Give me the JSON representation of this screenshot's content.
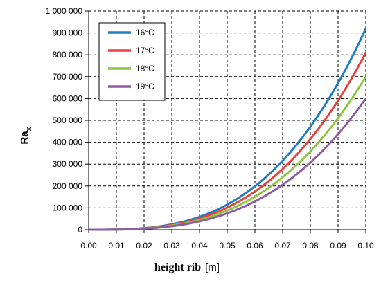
{
  "chart_data": {
    "type": "line",
    "title": "",
    "xlabel": "height rib",
    "xlabel_unit": "[m]",
    "ylabel_main": "Ra",
    "ylabel_sub": "x",
    "xlim": [
      0.0,
      0.1
    ],
    "ylim": [
      0,
      1000000
    ],
    "x_ticks": [
      0.0,
      0.01,
      0.02,
      0.03,
      0.04,
      0.05,
      0.06,
      0.07,
      0.08,
      0.09,
      0.1
    ],
    "x_tick_labels": [
      "0.00",
      "0.01",
      "0.02",
      "0.03",
      "0.04",
      "0.05",
      "0.06",
      "0.07",
      "0.08",
      "0.09",
      "0.10"
    ],
    "y_ticks": [
      0,
      100000,
      200000,
      300000,
      400000,
      500000,
      600000,
      700000,
      800000,
      900000,
      1000000
    ],
    "y_tick_labels": [
      "0",
      "100 000",
      "200 000",
      "300 000",
      "400 000",
      "500 000",
      "600 000",
      "700 000",
      "800 000",
      "900 000",
      "1 000 000"
    ],
    "grid": true,
    "legend_position": "top-left",
    "x": [
      0.0,
      0.01,
      0.02,
      0.03,
      0.04,
      0.05,
      0.06,
      0.07,
      0.08,
      0.09,
      0.1
    ],
    "series": [
      {
        "name": "16°C",
        "color": "#1f7bc4",
        "values": [
          0,
          920,
          7360,
          24840,
          58880,
          115000,
          198720,
          315560,
          471040,
          670680,
          920000
        ]
      },
      {
        "name": "17°C",
        "color": "#e8403a",
        "values": [
          0,
          810,
          6480,
          21870,
          51840,
          101250,
          174960,
          277830,
          414720,
          590490,
          810000
        ]
      },
      {
        "name": "18°C",
        "color": "#8cc63f",
        "values": [
          0,
          700,
          5600,
          18900,
          44800,
          87500,
          151200,
          240100,
          358400,
          510300,
          700000
        ]
      },
      {
        "name": "19°C",
        "color": "#8e5aa8",
        "values": [
          0,
          600,
          4800,
          16200,
          38400,
          75000,
          129600,
          205800,
          307200,
          437400,
          600000
        ]
      }
    ]
  }
}
